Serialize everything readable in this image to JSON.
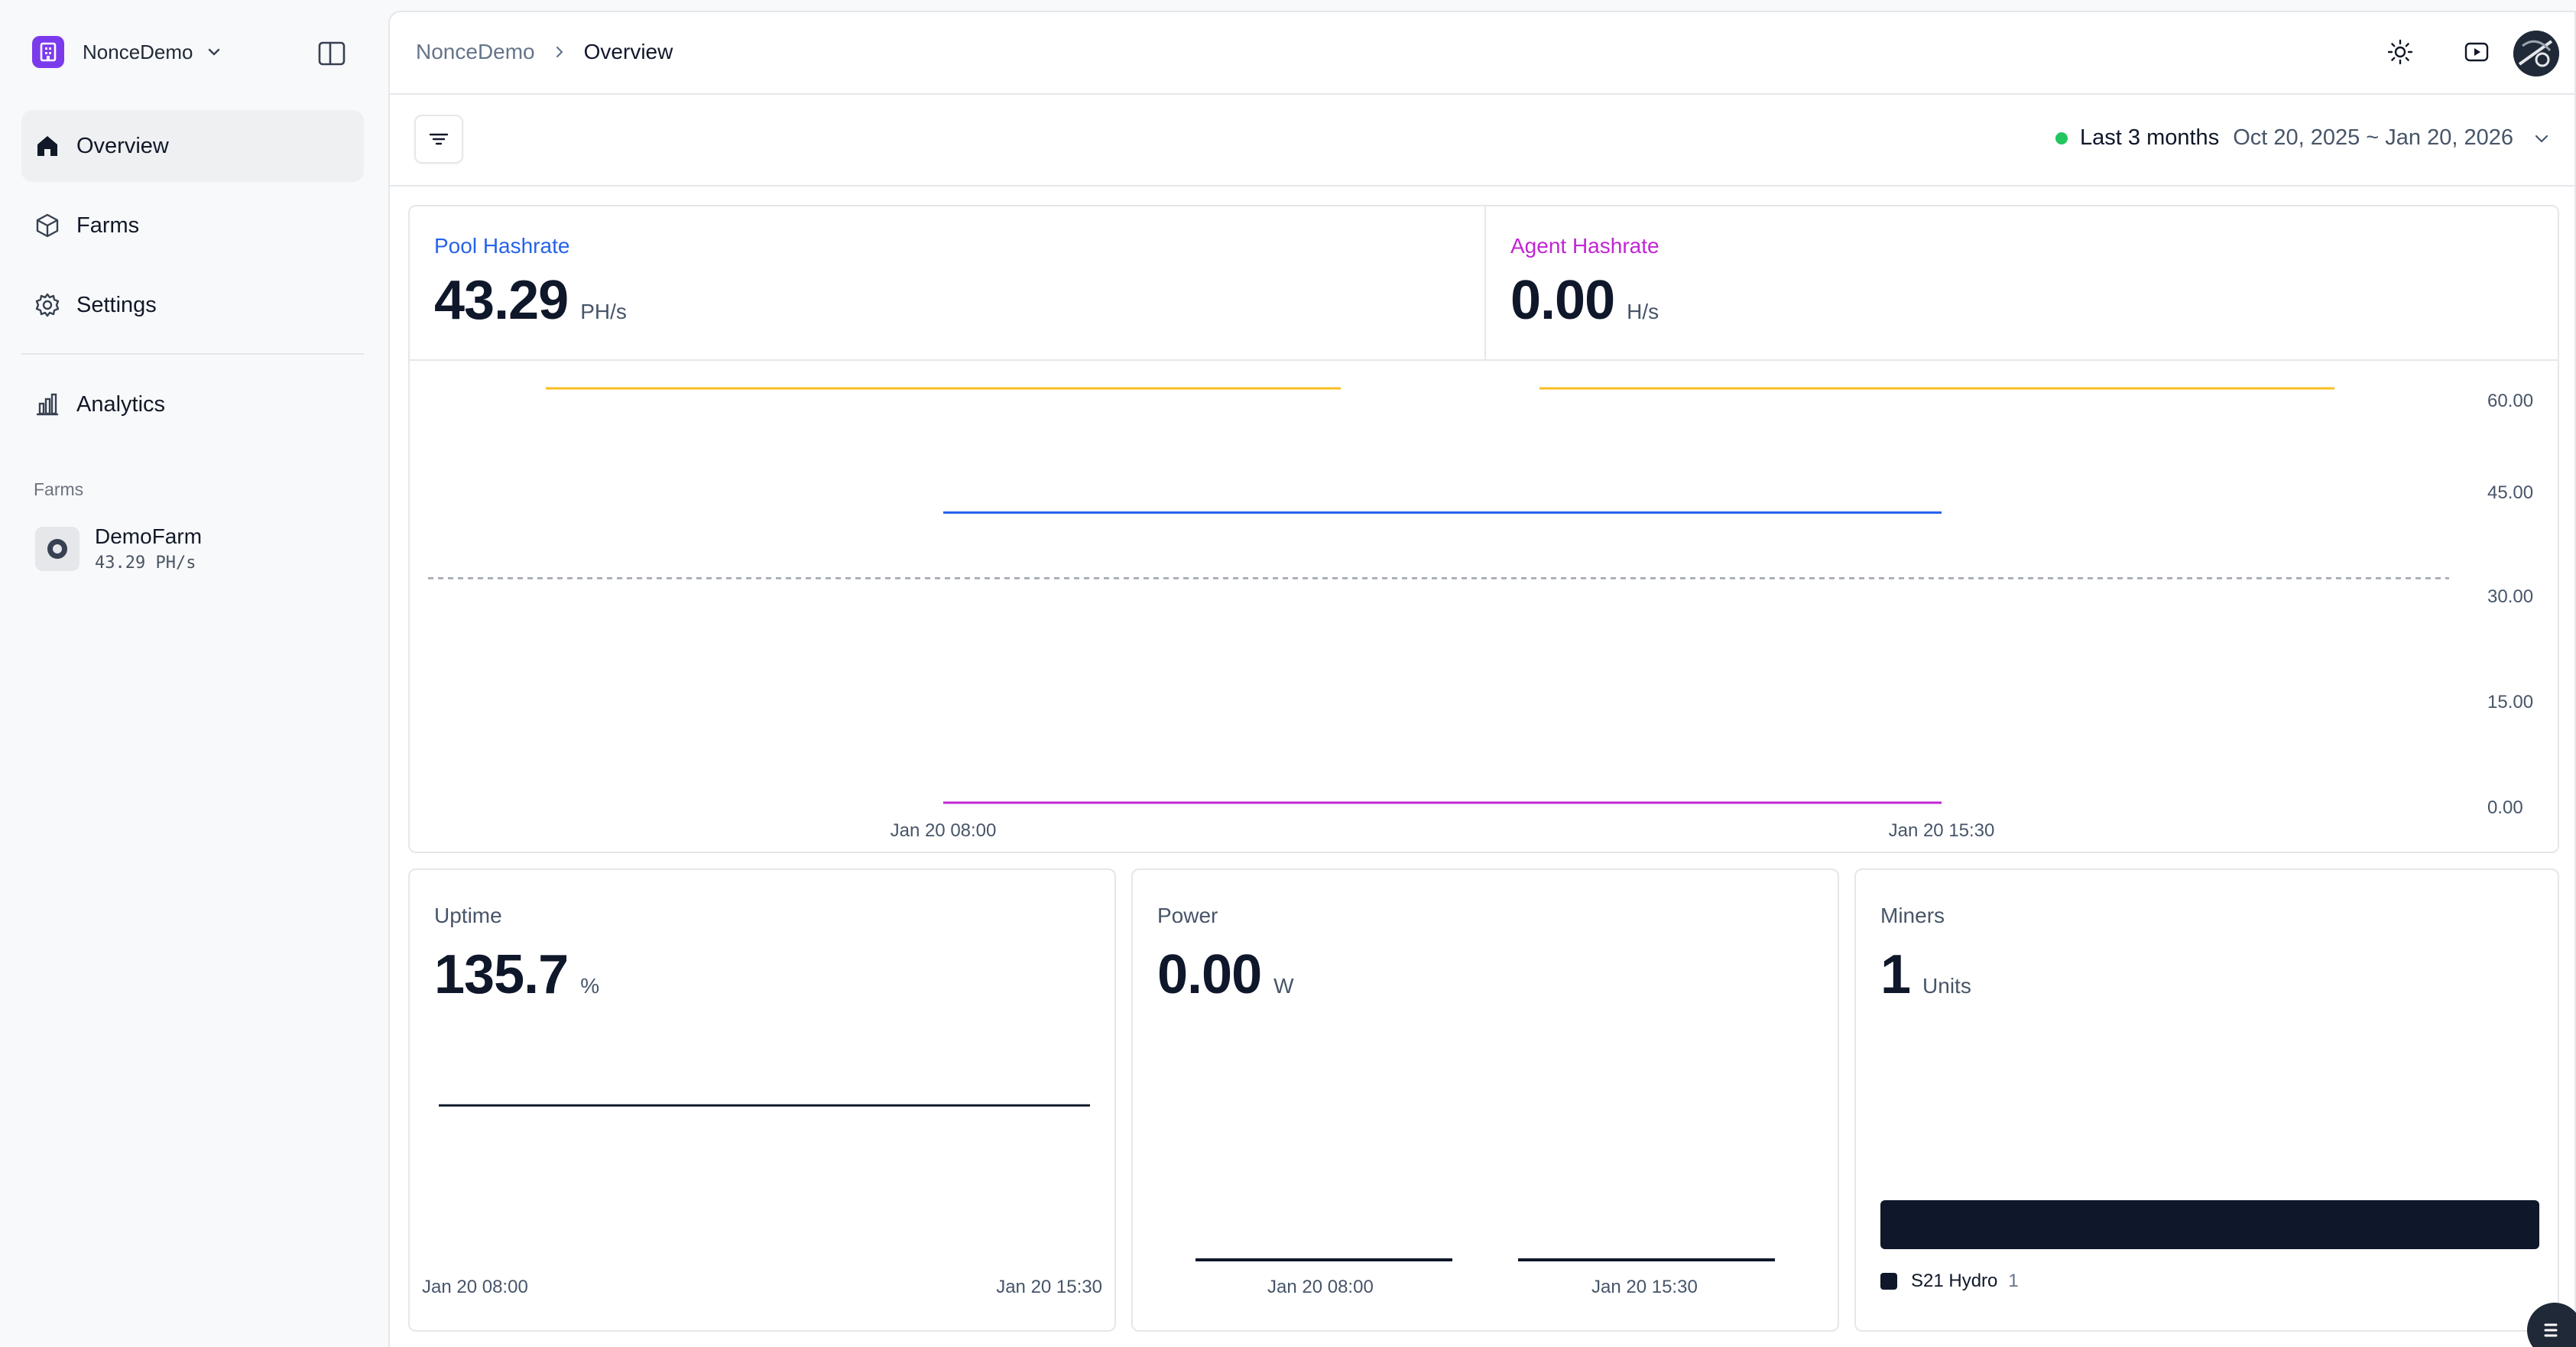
{
  "sidebar": {
    "org_name": "NonceDemo",
    "nav": [
      {
        "label": "Overview",
        "icon": "home-icon",
        "active": true
      },
      {
        "label": "Farms",
        "icon": "box-icon",
        "active": false
      },
      {
        "label": "Settings",
        "icon": "gear-icon",
        "active": false
      },
      {
        "label": "Analytics",
        "icon": "bar-chart-icon",
        "active": false
      }
    ],
    "farms_group_label": "Farms",
    "farms": [
      {
        "name": "DemoFarm",
        "rate": "43.29 PH/s"
      }
    ]
  },
  "header": {
    "breadcrumb_root": "NonceDemo",
    "breadcrumb_current": "Overview"
  },
  "filter": {
    "range_label": "Last 3 months",
    "range_dates": "Oct 20, 2025 ~ Jan 20, 2026",
    "status_color": "#22c55e"
  },
  "hashrate": {
    "pool": {
      "title": "Pool Hashrate",
      "value": "43.29",
      "unit": "PH/s",
      "color": "#2563eb"
    },
    "agent": {
      "title": "Agent Hashrate",
      "value": "0.00",
      "unit": "H/s",
      "color": "#c026d3"
    }
  },
  "cards": {
    "uptime": {
      "title": "Uptime",
      "value": "135.7",
      "unit": "%",
      "x_start": "Jan 20 08:00",
      "x_end": "Jan 20 15:30"
    },
    "power": {
      "title": "Power",
      "value": "0.00",
      "unit": "W",
      "x_start": "Jan 20 08:00",
      "x_end": "Jan 20 15:30"
    },
    "miners": {
      "title": "Miners",
      "value": "1",
      "unit": "Units",
      "legend": [
        {
          "name": "S21 Hydro",
          "count": "1"
        }
      ]
    }
  },
  "chart_data": {
    "type": "line",
    "x_ticks": [
      "Jan 20 08:00",
      "Jan 20 15:30"
    ],
    "y_ticks": [
      "60.00",
      "45.00",
      "30.00",
      "15.00",
      "0.00"
    ],
    "ylim": [
      0,
      60
    ],
    "grid": false,
    "series": [
      {
        "name": "Pool Hashrate",
        "color": "#2563eb",
        "x": [
          "Jan 20 08:00",
          "Jan 20 15:30"
        ],
        "y": [
          43.29,
          43.29
        ]
      },
      {
        "name": "Agent Hashrate",
        "color": "#c026d3",
        "x": [
          "Jan 20 08:00",
          "Jan 20 15:30"
        ],
        "y": [
          0,
          0
        ]
      }
    ],
    "reference_line": {
      "y": 33.5,
      "style": "dashed",
      "color": "#9ca3af"
    },
    "capacity_lines": {
      "color": "#fbbf24",
      "y": 60
    }
  }
}
